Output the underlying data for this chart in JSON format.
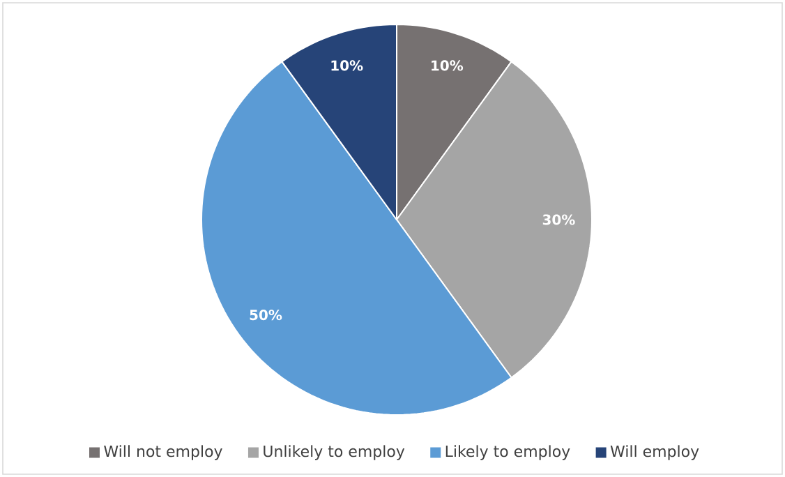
{
  "chart_data": {
    "type": "pie",
    "categories": [
      "Will not employ",
      "Unlikely to employ",
      "Likely to employ",
      "Will employ"
    ],
    "values": [
      10,
      30,
      50,
      10
    ],
    "colors": [
      "#767171",
      "#a5a5a5",
      "#5b9bd5",
      "#264478"
    ],
    "value_labels": [
      "10%",
      "30%",
      "50%",
      "10%"
    ],
    "legend": "bottom"
  }
}
